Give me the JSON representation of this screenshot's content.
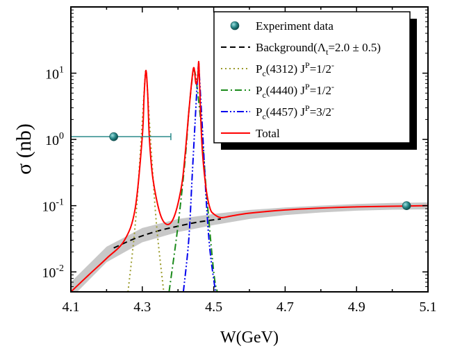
{
  "chart_data": {
    "type": "line",
    "title": "",
    "xlabel": "W(GeV)",
    "ylabel": "σ (nb)",
    "xscale": "linear",
    "yscale": "log",
    "xlim": [
      4.1,
      5.1
    ],
    "ylim": [
      0.005,
      100
    ],
    "x_ticks": [
      "4.1",
      "4.3",
      "4.5",
      "4.7",
      "4.9",
      "5.1"
    ],
    "y_ticks": [
      {
        "mantissa": "10",
        "exp": "-2",
        "value": 0.01
      },
      {
        "mantissa": "10",
        "exp": "-1",
        "value": 0.1
      },
      {
        "mantissa": "10",
        "exp": "0",
        "value": 1
      },
      {
        "mantissa": "10",
        "exp": "1",
        "value": 10
      }
    ],
    "legend_position": "top-right",
    "legend": [
      {
        "label": "Experiment data",
        "style": "marker",
        "color": "#2a8a8a"
      },
      {
        "label": "Background(Λ",
        "sub": "t",
        "suffix": "=2.0 ± 0.5)",
        "style": "dash",
        "color": "#000000"
      },
      {
        "label": "P",
        "sub": "c",
        "mid": "(4312) J",
        "sup": "P",
        "suffix": "=1/2",
        "sup2": "-",
        "style": "dot",
        "color": "#9a9a2a"
      },
      {
        "label": "P",
        "sub": "c",
        "mid": "(4440) J",
        "sup": "P",
        "suffix": "=1/2",
        "sup2": "-",
        "style": "dashdot",
        "color": "#1a8a1a"
      },
      {
        "label": "P",
        "sub": "c",
        "mid": "(4457) J",
        "sup": "P",
        "suffix": "=3/2",
        "sup2": "-",
        "style": "dashdotdot",
        "color": "#0000ee"
      },
      {
        "label": "Total",
        "style": "solid",
        "color": "#ff0000"
      }
    ],
    "experiment_points": [
      {
        "x": 4.22,
        "y": 1.1,
        "xerr_low": 4.1,
        "xerr_high": 4.38
      },
      {
        "x": 5.04,
        "y": 0.1
      }
    ],
    "background": {
      "x": [
        4.22,
        4.28,
        4.34,
        4.4,
        4.46,
        4.52
      ],
      "y": [
        0.023,
        0.032,
        0.041,
        0.049,
        0.057,
        0.063
      ]
    },
    "total": {
      "x": [
        4.1,
        4.15,
        4.2,
        4.25,
        4.28,
        4.3,
        4.305,
        4.31,
        4.315,
        4.32,
        4.33,
        4.35,
        4.37,
        4.39,
        4.41,
        4.42,
        4.43,
        4.44,
        4.445,
        4.45,
        4.455,
        4.458,
        4.46,
        4.465,
        4.47,
        4.48,
        4.49,
        4.5,
        4.52,
        4.55,
        4.6,
        4.7,
        4.8,
        4.9,
        5.0,
        5.1
      ],
      "y": [
        0.005,
        0.009,
        0.016,
        0.03,
        0.09,
        1.1,
        4.5,
        11,
        5.0,
        1.0,
        0.25,
        0.075,
        0.052,
        0.07,
        0.2,
        0.6,
        2.5,
        9,
        12,
        7,
        8.5,
        15,
        8,
        1.4,
        0.5,
        0.16,
        0.09,
        0.075,
        0.066,
        0.07,
        0.077,
        0.086,
        0.092,
        0.096,
        0.098,
        0.1
      ]
    },
    "pc4312": {
      "x": [
        4.26,
        4.28,
        4.295,
        4.305,
        4.31,
        4.315,
        4.325,
        4.34,
        4.36
      ],
      "y": [
        0.005,
        0.05,
        0.7,
        5.0,
        11,
        5.0,
        0.7,
        0.05,
        0.005
      ]
    },
    "pc4440": {
      "x": [
        4.375,
        4.4,
        4.42,
        4.43,
        4.44,
        4.445,
        4.45,
        4.46,
        4.47,
        4.48,
        4.5,
        4.51
      ],
      "y": [
        0.005,
        0.05,
        0.5,
        2.5,
        8.5,
        11,
        8.5,
        3,
        0.8,
        0.15,
        0.01,
        0.005
      ]
    },
    "pc4457": {
      "x": [
        4.415,
        4.43,
        4.44,
        4.45,
        4.455,
        4.458,
        4.46,
        4.47,
        4.48,
        4.49,
        4.505
      ],
      "y": [
        0.005,
        0.03,
        0.3,
        3,
        9,
        14,
        9,
        1,
        0.1,
        0.02,
        0.005
      ]
    },
    "band": {
      "x": [
        4.1,
        4.2,
        4.3,
        4.4,
        4.5,
        4.6,
        4.7,
        4.8,
        4.9,
        5.0,
        5.1
      ],
      "upper": [
        0.007,
        0.024,
        0.046,
        0.063,
        0.075,
        0.086,
        0.094,
        0.1,
        0.106,
        0.11,
        0.112
      ],
      "lower": [
        0.004,
        0.014,
        0.028,
        0.04,
        0.051,
        0.063,
        0.072,
        0.079,
        0.084,
        0.087,
        0.088
      ]
    }
  }
}
